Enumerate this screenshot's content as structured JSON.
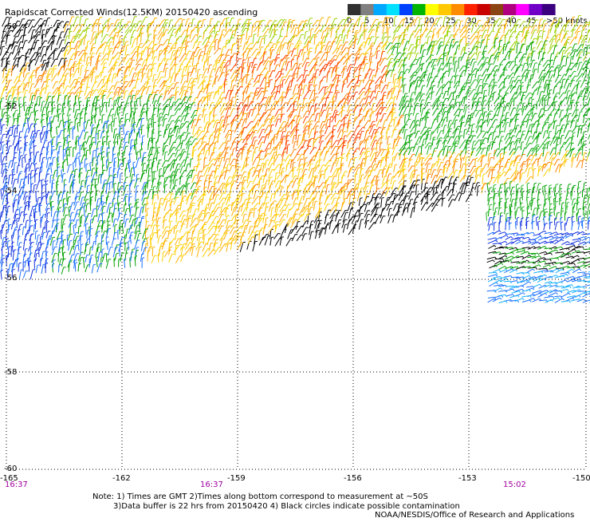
{
  "title": "Rapidscat Corrected Winds(12.5KM) 20150420 ascending",
  "legend": {
    "labels": [
      "0",
      "5",
      "10",
      "15",
      "20",
      "25",
      "30",
      "35",
      "40",
      "45",
      ">50 knots"
    ],
    "colors": [
      "#303030",
      "#808080",
      "#00a8ff",
      "#00e0ff",
      "#0040ff",
      "#00b400",
      "#ffff00",
      "#ffc800",
      "#ff8c00",
      "#ff2000",
      "#c80000",
      "#8b4513",
      "#b00080",
      "#ff00ff",
      "#7000c8",
      "#3a0080"
    ]
  },
  "axes": {
    "lat_labels": [
      "-50",
      "-52",
      "-54",
      "-56",
      "-58",
      "-60"
    ],
    "lon_labels": [
      "-165",
      "-162",
      "-159",
      "-156",
      "-153",
      "-150"
    ],
    "time_labels": [
      "16:37",
      "16:37",
      "15:02"
    ]
  },
  "notes": {
    "line1": "Note: 1) Times are GMT 2)Times along bottom correspond to measurement at ~50S",
    "line2": "3)Data buffer is 22 hrs from 20150420 4) Black circles indicate possible contamination",
    "credit": "NOAA/NESDIS/Office of Research and Applications"
  },
  "palette": {
    "black": "#000000",
    "dark_blue": "#1030e0",
    "blue": "#1a70ff",
    "light_blue": "#1ab0ff",
    "green": "#00a000",
    "green2": "#20b420",
    "yellow_green": "#9ad000",
    "yellow": "#ffd000",
    "gold": "#ffb000",
    "orange": "#ff8000",
    "red_orange": "#ff4000",
    "time_color": "#a000a0"
  }
}
